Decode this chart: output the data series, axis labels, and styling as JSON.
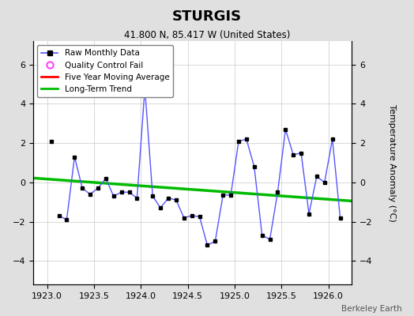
{
  "title": "STURGIS",
  "subtitle": "41.800 N, 85.417 W (United States)",
  "ylabel": "Temperature Anomaly (°C)",
  "attribution": "Berkeley Earth",
  "xlim": [
    1922.85,
    1926.25
  ],
  "ylim": [
    -5.2,
    7.2
  ],
  "yticks": [
    -4,
    -2,
    0,
    2,
    4,
    6
  ],
  "xticks": [
    1923,
    1923.5,
    1924,
    1924.5,
    1925,
    1925.5,
    1926
  ],
  "background_color": "#e0e0e0",
  "plot_bg_color": "#ffffff",
  "raw_x": [
    1923.125,
    1923.208,
    1923.292,
    1923.375,
    1923.458,
    1923.542,
    1923.625,
    1923.708,
    1923.792,
    1923.875,
    1923.958,
    1924.042,
    1924.125,
    1924.208,
    1924.292,
    1924.375,
    1924.458,
    1924.542,
    1924.625,
    1924.708,
    1924.792,
    1924.875,
    1924.958,
    1925.042,
    1925.125,
    1925.208,
    1925.292,
    1925.375,
    1925.458,
    1925.542,
    1925.625,
    1925.708,
    1925.792,
    1925.875,
    1925.958,
    1926.042,
    1926.125
  ],
  "raw_y": [
    -1.7,
    -1.9,
    1.3,
    -0.3,
    -0.6,
    -0.3,
    0.2,
    -0.7,
    -0.5,
    -0.5,
    -0.8,
    4.8,
    -0.7,
    -1.3,
    -0.8,
    -0.9,
    -1.8,
    -1.7,
    -1.75,
    -3.2,
    -3.0,
    -0.65,
    -0.65,
    2.1,
    2.2,
    0.8,
    -2.7,
    -2.9,
    -0.5,
    2.7,
    1.4,
    1.5,
    -1.6,
    0.3,
    0.0,
    2.2,
    -1.8
  ],
  "isolated_x": [
    1923.042
  ],
  "isolated_y": [
    2.1
  ],
  "trend_x": [
    1922.85,
    1926.25
  ],
  "trend_y": [
    0.22,
    -0.95
  ],
  "raw_color": "#5555ff",
  "raw_marker_color": "#000000",
  "trend_color": "#00bb00",
  "ma_color": "#ff0000",
  "qc_color": "#ff44ff"
}
